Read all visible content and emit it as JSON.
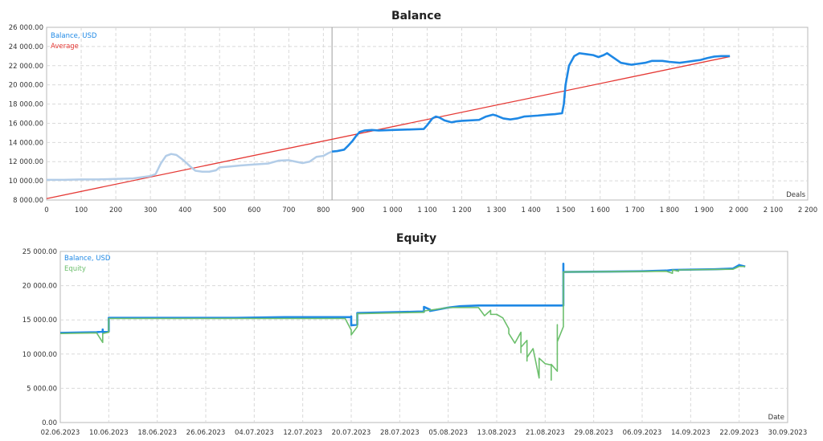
{
  "chart_data": [
    {
      "type": "line",
      "title": "Balance",
      "xlabel": "Deals",
      "ylabel": "",
      "xlim": [
        0,
        2200
      ],
      "ylim": [
        8000,
        26000
      ],
      "x_ticks": [
        0,
        100,
        200,
        300,
        400,
        500,
        600,
        700,
        800,
        900,
        1000,
        1100,
        1200,
        1300,
        1400,
        1500,
        1600,
        1700,
        1800,
        1900,
        2000,
        2100,
        2200
      ],
      "x_tick_labels": [
        "0",
        "100",
        "200",
        "300",
        "400",
        "500",
        "600",
        "700",
        "800",
        "900",
        "1 000",
        "1 100",
        "1 200",
        "1 300",
        "1 400",
        "1 500",
        "1 600",
        "1 700",
        "1 800",
        "1 900",
        "2 000",
        "2 100",
        "2 200"
      ],
      "y_ticks": [
        8000,
        10000,
        12000,
        14000,
        16000,
        18000,
        20000,
        22000,
        24000,
        26000
      ],
      "y_tick_labels": [
        "8 000.00",
        "10 000.00",
        "12 000.00",
        "14 000.00",
        "16 000.00",
        "18 000.00",
        "20 000.00",
        "22 000.00",
        "24 000.00",
        "26 000.00"
      ],
      "grid": true,
      "legend_position": "top-left",
      "marker_line_x": 825,
      "series": [
        {
          "name": "Balance, USD",
          "color": "#1e88e5",
          "faded_before_x": 825,
          "faded_color": "#b3cde8",
          "x": [
            0,
            50,
            100,
            150,
            200,
            250,
            300,
            315,
            330,
            345,
            360,
            375,
            390,
            400,
            415,
            430,
            450,
            470,
            490,
            500,
            530,
            560,
            600,
            640,
            670,
            700,
            720,
            740,
            760,
            780,
            800,
            815,
            825,
            840,
            860,
            870,
            885,
            895,
            905,
            920,
            940,
            960,
            1000,
            1050,
            1090,
            1100,
            1115,
            1125,
            1135,
            1150,
            1170,
            1185,
            1200,
            1250,
            1270,
            1290,
            1300,
            1320,
            1340,
            1360,
            1380,
            1400,
            1420,
            1450,
            1470,
            1480,
            1490,
            1495,
            1500,
            1510,
            1525,
            1540,
            1560,
            1580,
            1595,
            1610,
            1620,
            1640,
            1660,
            1690,
            1710,
            1730,
            1750,
            1780,
            1800,
            1830,
            1850,
            1870,
            1890,
            1910,
            1930,
            1950,
            1975
          ],
          "values": [
            10100,
            10100,
            10150,
            10150,
            10200,
            10250,
            10500,
            10700,
            11800,
            12600,
            12800,
            12700,
            12300,
            12000,
            11500,
            11050,
            10950,
            10950,
            11100,
            11400,
            11500,
            11600,
            11700,
            11800,
            12100,
            12150,
            12000,
            11850,
            12000,
            12500,
            12600,
            12900,
            13050,
            13100,
            13250,
            13600,
            14200,
            14700,
            15100,
            15250,
            15300,
            15250,
            15300,
            15350,
            15400,
            15800,
            16500,
            16700,
            16600,
            16300,
            16100,
            16200,
            16250,
            16350,
            16700,
            16900,
            16800,
            16500,
            16400,
            16500,
            16700,
            16750,
            16800,
            16900,
            16950,
            17000,
            17050,
            18000,
            20000,
            22000,
            23000,
            23300,
            23200,
            23100,
            22900,
            23100,
            23300,
            22800,
            22300,
            22100,
            22200,
            22300,
            22500,
            22500,
            22400,
            22300,
            22400,
            22500,
            22600,
            22800,
            22950,
            23000,
            23000
          ]
        },
        {
          "name": "Average",
          "color": "#e53935",
          "x": [
            0,
            1975
          ],
          "values": [
            8150,
            22950
          ]
        }
      ]
    },
    {
      "type": "line",
      "title": "Equity",
      "xlabel": "Date",
      "ylabel": "",
      "xlim": [
        "02.06.2023",
        "30.09.2023"
      ],
      "ylim": [
        0,
        25000
      ],
      "x_tick_labels": [
        "02.06.2023",
        "10.06.2023",
        "18.06.2023",
        "26.06.2023",
        "04.07.2023",
        "12.07.2023",
        "20.07.2023",
        "28.07.2023",
        "05.08.2023",
        "13.08.2023",
        "21.08.2023",
        "29.08.2023",
        "06.09.2023",
        "14.09.2023",
        "22.09.2023",
        "30.09.2023"
      ],
      "y_ticks": [
        0,
        5000,
        10000,
        15000,
        20000,
        25000
      ],
      "y_tick_labels": [
        "0.00",
        "5 000.00",
        "10 000.00",
        "15 000.00",
        "20 000.00",
        "25 000.00"
      ],
      "grid": true,
      "legend_position": "top-left",
      "series": [
        {
          "name": "Balance, USD",
          "color": "#1e88e5",
          "x": [
            "02.06.2023",
            "08.06.2023",
            "09.06.2023",
            "09.06.2023",
            "09.06.2023",
            "10.06.2023",
            "10.06.2023",
            "01.07.2023",
            "09.07.2023",
            "20.07.2023",
            "20.07.2023",
            "20.07.2023",
            "21.07.2023",
            "21.07.2023",
            "31.07.2023",
            "01.08.2023",
            "01.08.2023",
            "02.08.2023",
            "02.08.2023",
            "05.08.2023",
            "07.08.2023",
            "10.08.2023",
            "24.08.2023",
            "24.08.2023",
            "24.08.2023",
            "24.08.2023",
            "06.09.2023",
            "10.09.2023",
            "11.09.2023",
            "18.09.2023",
            "21.09.2023",
            "22.09.2023",
            "23.09.2023"
          ],
          "values": [
            13100,
            13200,
            13300,
            13600,
            13200,
            13300,
            15300,
            15300,
            15400,
            15400,
            15500,
            14200,
            14300,
            16000,
            16200,
            16200,
            16900,
            16500,
            16300,
            16800,
            17000,
            17100,
            17100,
            23200,
            22100,
            22000,
            22100,
            22200,
            22300,
            22400,
            22500,
            23000,
            22800
          ]
        },
        {
          "name": "Equity",
          "color": "#6cbf6c",
          "x": [
            "02.06.2023",
            "08.06.2023",
            "09.06.2023",
            "09.06.2023",
            "09.06.2023",
            "10.06.2023",
            "10.06.2023",
            "19.07.2023",
            "20.07.2023",
            "20.07.2023",
            "20.07.2023",
            "20.07.2023",
            "21.07.2023",
            "21.07.2023",
            "01.08.2023",
            "01.08.2023",
            "05.08.2023",
            "10.08.2023",
            "11.08.2023",
            "12.08.2023",
            "12.08.2023",
            "13.08.2023",
            "14.08.2023",
            "15.08.2023",
            "15.08.2023",
            "16.08.2023",
            "17.08.2023",
            "17.08.2023",
            "17.08.2023",
            "17.08.2023",
            "18.08.2023",
            "18.08.2023",
            "18.08.2023",
            "18.08.2023",
            "19.08.2023",
            "20.08.2023",
            "20.08.2023",
            "21.08.2023",
            "22.08.2023",
            "22.08.2023",
            "22.08.2023",
            "23.08.2023",
            "23.08.2023",
            "23.08.2023",
            "24.08.2023",
            "24.08.2023",
            "24.08.2023",
            "10.09.2023",
            "11.09.2023",
            "11.09.2023",
            "12.09.2023",
            "12.09.2023",
            "21.09.2023",
            "22.09.2023",
            "23.09.2023"
          ],
          "values": [
            13000,
            13100,
            11700,
            12300,
            13000,
            13200,
            15200,
            15200,
            13500,
            12800,
            13600,
            12800,
            14000,
            15900,
            16100,
            16300,
            16800,
            16800,
            15600,
            16400,
            15800,
            15800,
            15300,
            13700,
            13000,
            11600,
            13200,
            10200,
            12500,
            11000,
            12000,
            9000,
            11700,
            9500,
            10800,
            6500,
            9400,
            8600,
            8400,
            6200,
            8500,
            7500,
            14300,
            11800,
            14000,
            16500,
            22000,
            22100,
            21800,
            22300,
            22100,
            22300,
            22400,
            22800,
            22800
          ]
        }
      ]
    }
  ]
}
